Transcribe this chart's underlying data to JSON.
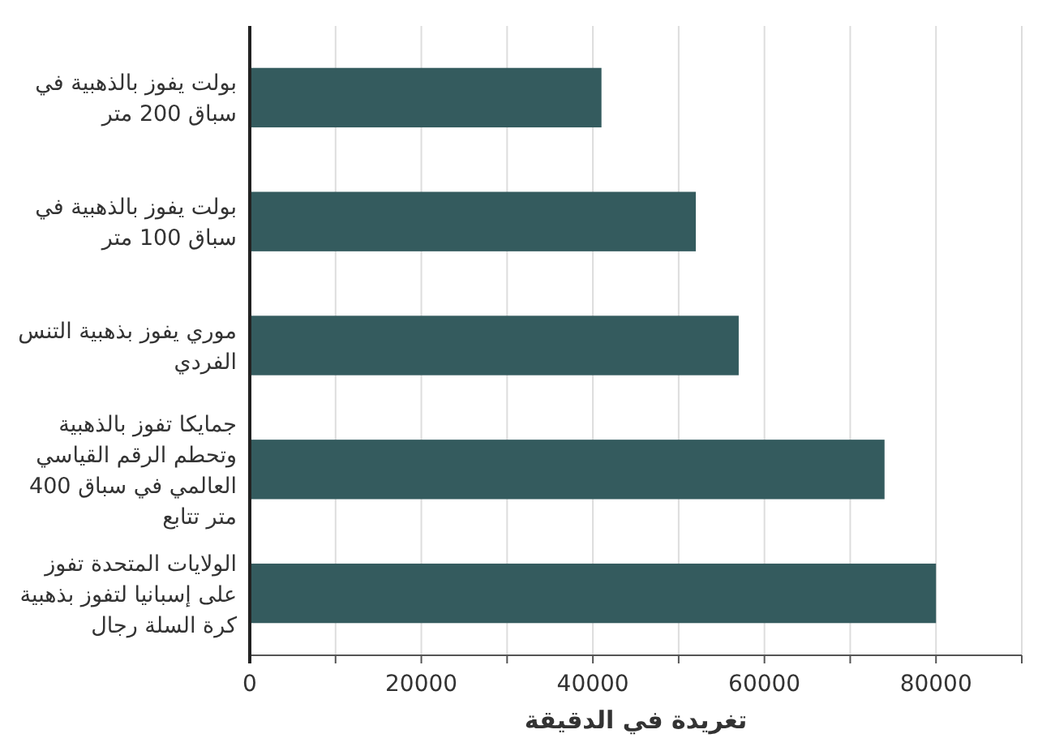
{
  "chart_data": {
    "type": "bar",
    "orientation": "horizontal",
    "xlabel": "تغريدة في الدقيقة",
    "categories": [
      "بولت يفوز بالذهبية في سباق 200 متر",
      "بولت يفوز بالذهبية في سباق 100 متر",
      "موري يفوز بذهبية التنس الفردي",
      "جمايكا تفوز بالذهبية وتحطم الرقم القياسي العالمي في سباق 400 متر تتابع",
      "الولايات المتحدة تفوز على إسبانيا لتفوز بذهبية كرة السلة رجال"
    ],
    "values": [
      41000,
      52000,
      57000,
      74000,
      80000
    ],
    "color": "#345b5e",
    "xlim": [
      0,
      90000
    ],
    "xticks": [
      0,
      {
        "value": 10000,
        "label": null
      },
      20000,
      {
        "value": 30000,
        "label": null
      },
      40000,
      {
        "value": 50000,
        "label": null
      },
      60000,
      {
        "value": 70000,
        "label": null
      },
      80000,
      {
        "value": 90000,
        "label": null
      }
    ],
    "grid": "x"
  }
}
